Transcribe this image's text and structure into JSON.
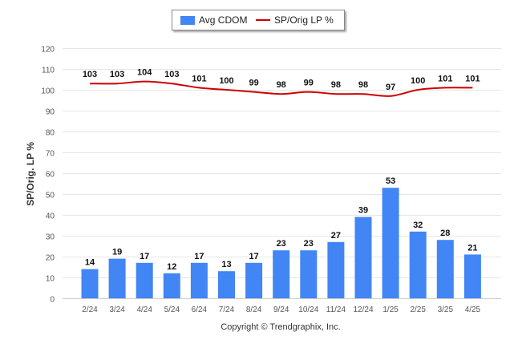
{
  "legend": {
    "bar_label": "Avg CDOM",
    "line_label": "SP/Orig LP %"
  },
  "copyright": "Copyright © Trendgraphix, Inc.",
  "chart_data": {
    "type": "bar+line",
    "ylabel": "SP/Orig. LP %",
    "ylim": [
      0,
      120
    ],
    "yticks": [
      0,
      10,
      20,
      30,
      40,
      50,
      60,
      70,
      80,
      90,
      100,
      110,
      120
    ],
    "grid": true,
    "legend_position": "top-center",
    "categories": [
      "2/24",
      "3/24",
      "4/24",
      "5/24",
      "6/24",
      "7/24",
      "8/24",
      "9/24",
      "10/24",
      "11/24",
      "12/24",
      "1/25",
      "2/25",
      "3/25",
      "4/25"
    ],
    "series": [
      {
        "name": "Avg CDOM",
        "type": "bar",
        "color": "#4285f4",
        "values": [
          14,
          19,
          17,
          12,
          17,
          13,
          17,
          23,
          23,
          27,
          39,
          53,
          32,
          28,
          21
        ]
      },
      {
        "name": "SP/Orig LP %",
        "type": "line",
        "color": "#cc0000",
        "values": [
          103,
          103,
          104,
          103,
          101,
          100,
          99,
          98,
          99,
          98,
          98,
          97,
          100,
          101,
          101
        ]
      }
    ]
  }
}
